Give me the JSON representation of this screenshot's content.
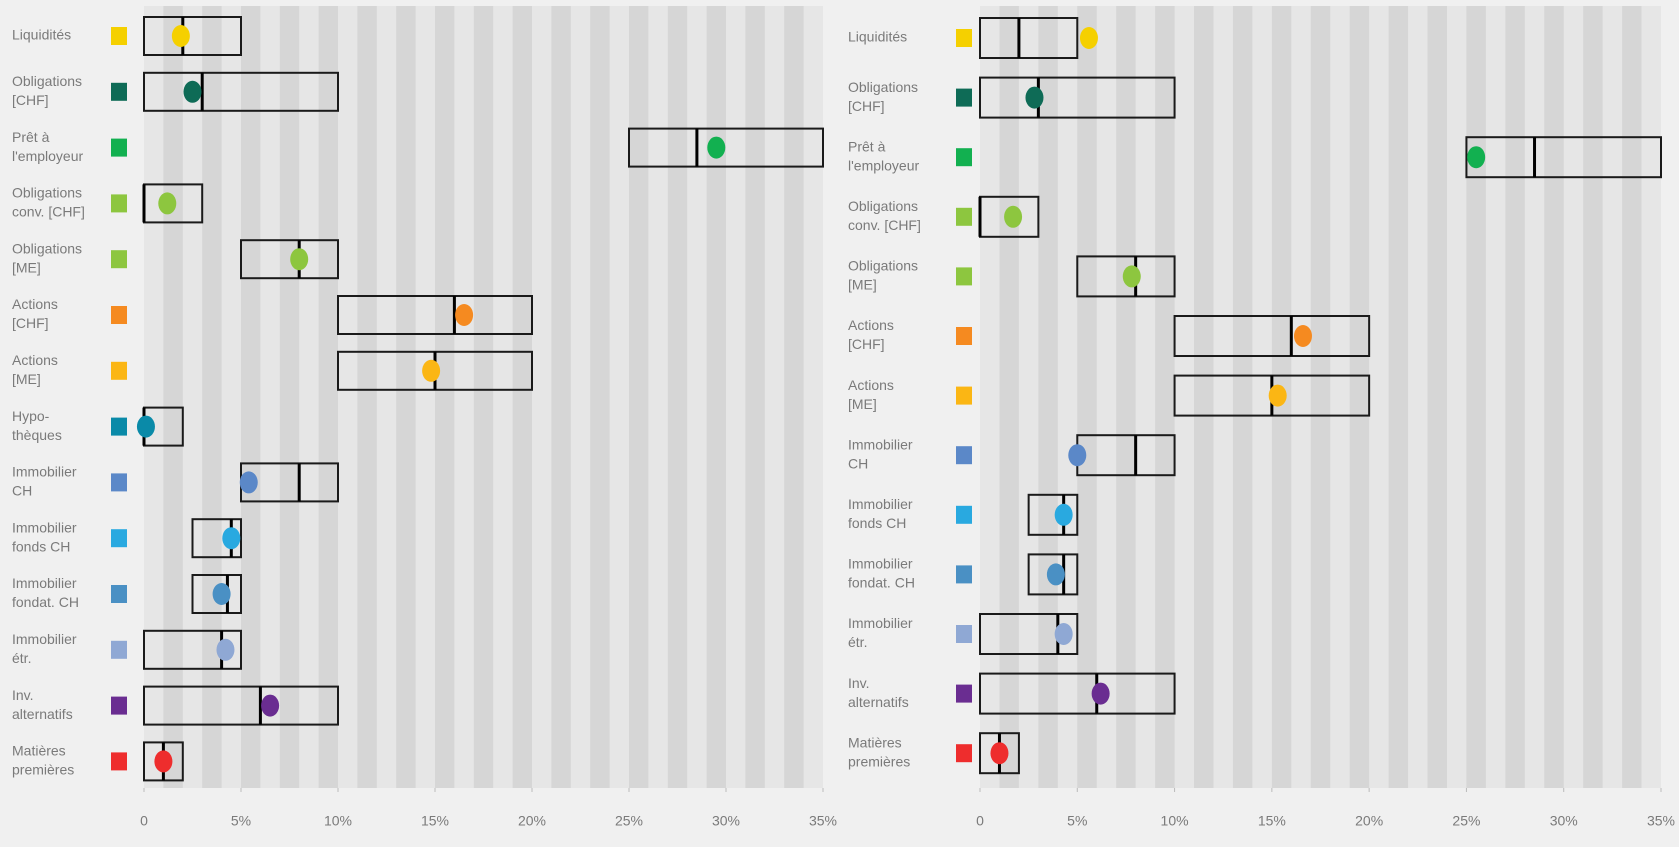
{
  "chart_data": [
    {
      "type": "range",
      "categories": [
        [
          "Liquidités"
        ],
        [
          "Obligations",
          "[CHF]"
        ],
        [
          "Prêt à",
          "l'employeur"
        ],
        [
          "Obligations",
          "conv. [CHF]"
        ],
        [
          "Obligations",
          "[ME]"
        ],
        [
          "Actions",
          "[CHF]"
        ],
        [
          "Actions",
          "[ME]"
        ],
        [
          "Hypo-",
          "thèques"
        ],
        [
          "Immobilier",
          "CH"
        ],
        [
          "Immobilier",
          "fonds CH"
        ],
        [
          "Immobilier",
          "fondat. CH"
        ],
        [
          "Immobilier",
          "étr."
        ],
        [
          "Inv.",
          "alternatifs"
        ],
        [
          "Matières",
          "premières"
        ]
      ],
      "colors": [
        "#f5d000",
        "#0e6b56",
        "#12b050",
        "#8dc63f",
        "#8dc63f",
        "#f58a20",
        "#fbb614",
        "#0a8aa8",
        "#5b88c8",
        "#29a9e0",
        "#4a90c4",
        "#8fa8d4",
        "#6a2d91",
        "#ee2d2d"
      ],
      "min": [
        0,
        0,
        25,
        0,
        5,
        10,
        10,
        0,
        5,
        2.5,
        2.5,
        0,
        0,
        0
      ],
      "max": [
        5,
        10,
        35,
        3,
        10,
        20,
        20,
        2,
        10,
        5,
        5,
        5,
        10,
        2
      ],
      "target": [
        2,
        3,
        28.5,
        0,
        8,
        16,
        15,
        0,
        8,
        4.5,
        4.3,
        4,
        6,
        1
      ],
      "values": [
        1.9,
        2.5,
        29.5,
        1.2,
        8,
        16.5,
        14.8,
        0.1,
        5.4,
        4.5,
        4,
        4.2,
        6.5,
        1
      ],
      "xlim": [
        0,
        35
      ],
      "xticks": [
        0,
        {
          "value": 5,
          "label": "5%"
        },
        {
          "value": 10,
          "label": "10%"
        },
        {
          "value": 15,
          "label": "15%"
        },
        {
          "value": 20,
          "label": "20%"
        },
        {
          "value": 25,
          "label": "25%"
        },
        {
          "value": 30,
          "label": "30%"
        },
        {
          "value": 35,
          "label": "35%"
        }
      ]
    },
    {
      "type": "range",
      "categories": [
        [
          "Liquidités"
        ],
        [
          "Obligations",
          "[CHF]"
        ],
        [
          "Prêt à",
          "l'employeur"
        ],
        [
          "Obligations",
          "conv. [CHF]"
        ],
        [
          "Obligations",
          "[ME]"
        ],
        [
          "Actions",
          "[CHF]"
        ],
        [
          "Actions",
          "[ME]"
        ],
        [
          "Immobilier",
          "CH"
        ],
        [
          "Immobilier",
          "fonds CH"
        ],
        [
          "Immobilier",
          "fondat. CH"
        ],
        [
          "Immobilier",
          "étr."
        ],
        [
          "Inv.",
          "alternatifs"
        ],
        [
          "Matières",
          "premières"
        ]
      ],
      "colors": [
        "#f5d000",
        "#0e6b56",
        "#12b050",
        "#8dc63f",
        "#8dc63f",
        "#f58a20",
        "#fbb614",
        "#5b88c8",
        "#29a9e0",
        "#4a90c4",
        "#8fa8d4",
        "#6a2d91",
        "#ee2d2d"
      ],
      "min": [
        0,
        0,
        25,
        0,
        5,
        10,
        10,
        5,
        2.5,
        2.5,
        0,
        0,
        0
      ],
      "max": [
        5,
        10,
        35,
        3,
        10,
        20,
        20,
        10,
        5,
        5,
        5,
        10,
        2
      ],
      "target": [
        2,
        3,
        28.5,
        0,
        8,
        16,
        15,
        8,
        4.3,
        4.3,
        4,
        6,
        1
      ],
      "values": [
        5.6,
        2.8,
        25.5,
        1.7,
        7.8,
        16.6,
        15.3,
        5,
        4.3,
        3.9,
        4.3,
        6.2,
        1
      ],
      "xlim": [
        0,
        35
      ],
      "xticks": [
        0,
        {
          "value": 5,
          "label": "5%"
        },
        {
          "value": 10,
          "label": "10%"
        },
        {
          "value": 15,
          "label": "15%"
        },
        {
          "value": 20,
          "label": "20%"
        },
        {
          "value": 25,
          "label": "25%"
        },
        {
          "value": 30,
          "label": "30%"
        },
        {
          "value": 35,
          "label": "35%"
        }
      ]
    }
  ]
}
